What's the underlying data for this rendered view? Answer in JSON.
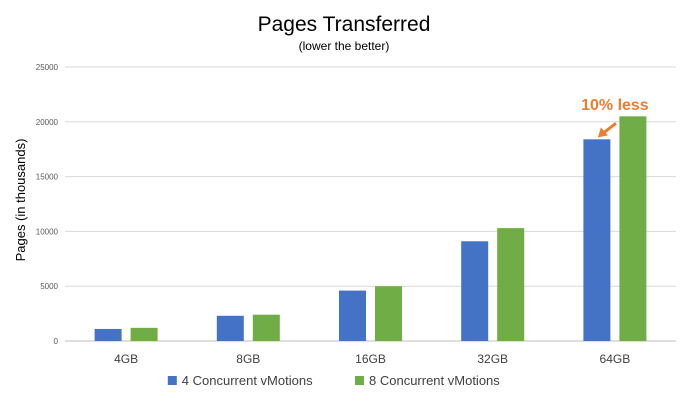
{
  "chart_data": {
    "type": "bar",
    "title": "Pages Transferred",
    "subtitle": "(lower the better)",
    "ylabel": "Pages (in thousands)",
    "xlabel": "",
    "categories": [
      "4GB",
      "8GB",
      "16GB",
      "32GB",
      "64GB"
    ],
    "ylim": [
      0,
      25000
    ],
    "yticks": [
      0,
      5000,
      10000,
      15000,
      20000,
      25000
    ],
    "grid": true,
    "legend_position": "bottom",
    "series": [
      {
        "name": "4 Concurrent vMotions",
        "color": "#4472C4",
        "values": [
          1100,
          2300,
          4600,
          9100,
          18400
        ]
      },
      {
        "name": "8 Concurrent vMotions",
        "color": "#70AD47",
        "values": [
          1200,
          2400,
          5000,
          10300,
          20500
        ]
      }
    ],
    "annotation": {
      "text": "10% less",
      "color": "#ED7D31",
      "category": "64GB",
      "series": "4 Concurrent vMotions"
    }
  }
}
